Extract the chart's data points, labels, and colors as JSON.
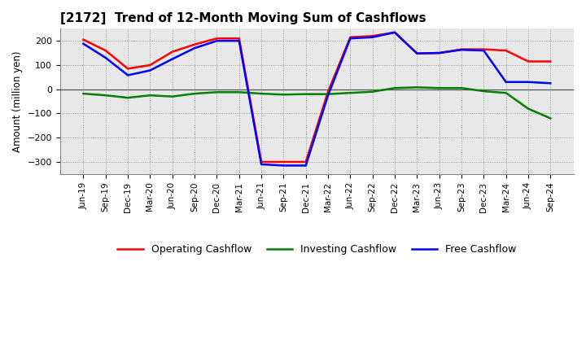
{
  "title": "[2172]  Trend of 12-Month Moving Sum of Cashflows",
  "ylabel": "Amount (million yen)",
  "x_labels": [
    "Jun-19",
    "Sep-19",
    "Dec-19",
    "Mar-20",
    "Jun-20",
    "Sep-20",
    "Dec-20",
    "Mar-21",
    "Jun-21",
    "Sep-21",
    "Dec-21",
    "Mar-22",
    "Jun-22",
    "Sep-22",
    "Dec-22",
    "Mar-23",
    "Jun-23",
    "Sep-23",
    "Dec-23",
    "Mar-24",
    "Jun-24",
    "Sep-24"
  ],
  "operating_cashflow": [
    205,
    160,
    85,
    100,
    155,
    185,
    210,
    210,
    -300,
    -300,
    -300,
    -10,
    215,
    220,
    235,
    148,
    150,
    165,
    165,
    160,
    115,
    115
  ],
  "investing_cashflow": [
    -18,
    -25,
    -35,
    -25,
    -30,
    -18,
    -12,
    -12,
    -18,
    -22,
    -20,
    -20,
    -15,
    -10,
    5,
    8,
    5,
    5,
    -8,
    -15,
    -80,
    -120
  ],
  "free_cashflow": [
    188,
    130,
    58,
    78,
    125,
    170,
    200,
    200,
    -310,
    -315,
    -315,
    -25,
    210,
    215,
    235,
    148,
    150,
    163,
    160,
    30,
    30,
    25
  ],
  "operating_color": "#FF0000",
  "investing_color": "#008000",
  "free_color": "#0000FF",
  "ylim": [
    -350,
    250
  ],
  "yticks": [
    -300,
    -200,
    -100,
    0,
    100,
    200
  ],
  "bg_color": "#E8E8E8",
  "grid_color": "#888888",
  "linewidth": 1.8
}
